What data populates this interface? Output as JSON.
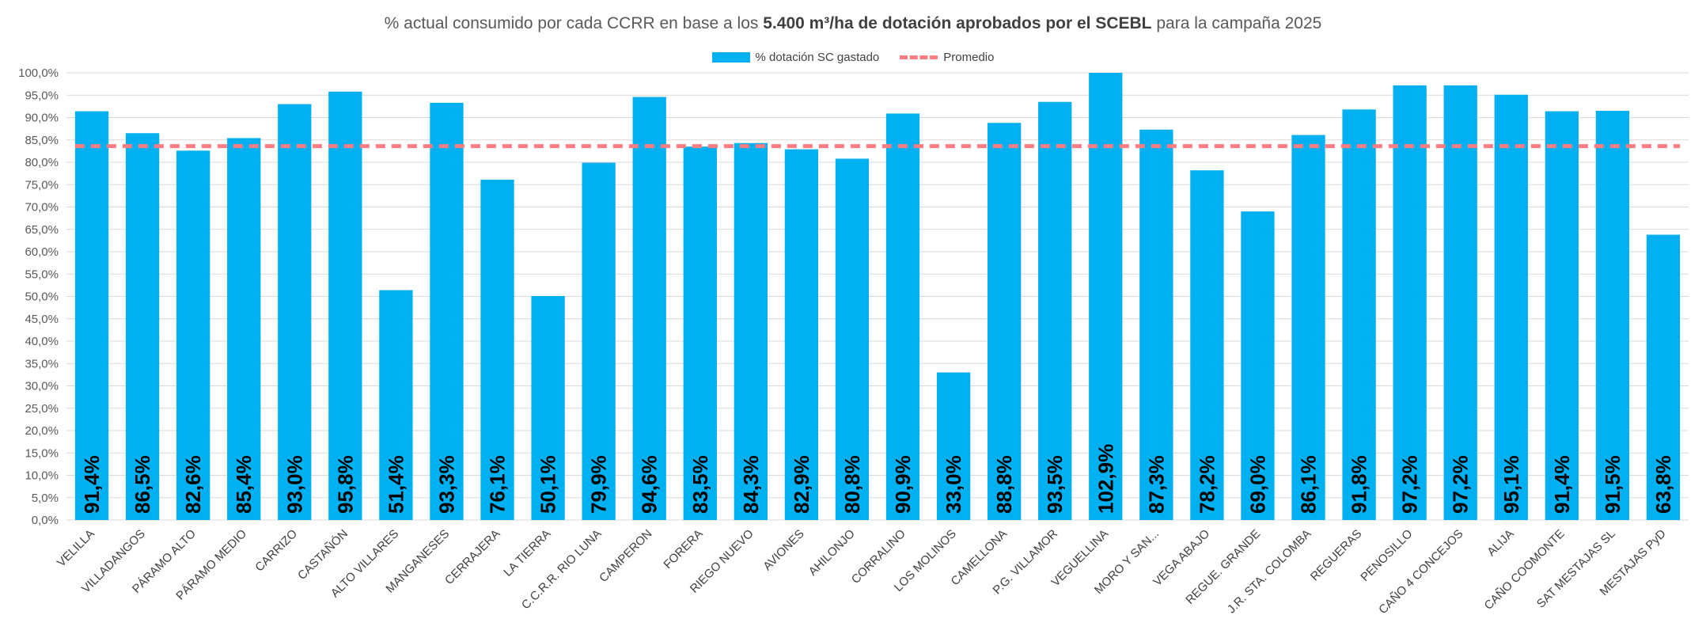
{
  "chart_data": {
    "type": "bar",
    "title_prefix": "% actual consumido por cada CCRR en base a los ",
    "title_bold": "5.400 m³/ha de dotación aprobados por el SCEBL",
    "title_suffix": " para la campaña 2025",
    "legend_position": "top",
    "ylim": [
      0,
      100
    ],
    "ytick_labels": [
      "0,0%",
      "5,0%",
      "10,0%",
      "15,0%",
      "20,0%",
      "25,0%",
      "30,0%",
      "35,0%",
      "40,0%",
      "45,0%",
      "50,0%",
      "55,0%",
      "60,0%",
      "65,0%",
      "70,0%",
      "75,0%",
      "80,0%",
      "85,0%",
      "90,0%",
      "95,0%",
      "100,0%"
    ],
    "grid": true,
    "categories": [
      "VELILLA",
      "VILLADANGOS",
      "PÁRAMO ALTO",
      "PÁRAMO MEDIO",
      "CARRIZO",
      "CASTAÑÓN",
      "ALTO VILLARES",
      "MANGANESES",
      "CERRAJERA",
      "LA TIERRA",
      "C.C.R.R. RIO LUNA",
      "CAMPERON",
      "FORERA",
      "RIEGO NUEVO",
      "AVIONES",
      "AHILONJO",
      "CORRALINO",
      "LOS MOLINOS",
      "CAMELLONA",
      "P.G. VILLAMOR",
      "VEGUELLINA",
      "MORO Y SAN...",
      "VEGA ABAJO",
      "REGUE. GRANDE",
      "J.R. STA. COLOMBA",
      "REGUERAS",
      "PENOSILLO",
      "CAÑO 4 CONCEJOS",
      "ALIJA",
      "CAÑO COOMONTE",
      "SAT MESTAJAS SL",
      "MESTAJAS PyD"
    ],
    "series": [
      {
        "name": "% dotación SC gastado",
        "color": "#00b0f0",
        "values": [
          91.4,
          86.5,
          82.6,
          85.4,
          93.0,
          95.8,
          51.4,
          93.3,
          76.1,
          50.1,
          79.9,
          94.6,
          83.5,
          84.3,
          82.9,
          80.8,
          90.9,
          33.0,
          88.8,
          93.5,
          102.9,
          87.3,
          78.2,
          69.0,
          86.1,
          91.8,
          97.2,
          97.2,
          95.1,
          91.4,
          91.5,
          63.8
        ],
        "data_labels": [
          "91,4%",
          "86,5%",
          "82,6%",
          "85,4%",
          "93,0%",
          "95,8%",
          "51,4%",
          "93,3%",
          "76,1%",
          "50,1%",
          "79,9%",
          "94,6%",
          "83,5%",
          "84,3%",
          "82,9%",
          "80,8%",
          "90,9%",
          "33,0%",
          "88,8%",
          "93,5%",
          "102,9%",
          "87,3%",
          "78,2%",
          "69,0%",
          "86,1%",
          "91,8%",
          "97,2%",
          "97,2%",
          "95,1%",
          "91,4%",
          "91,5%",
          "63,8%"
        ]
      },
      {
        "name": "Promedio",
        "color": "#ff7c80",
        "type": "line",
        "value": 83.6
      }
    ]
  }
}
